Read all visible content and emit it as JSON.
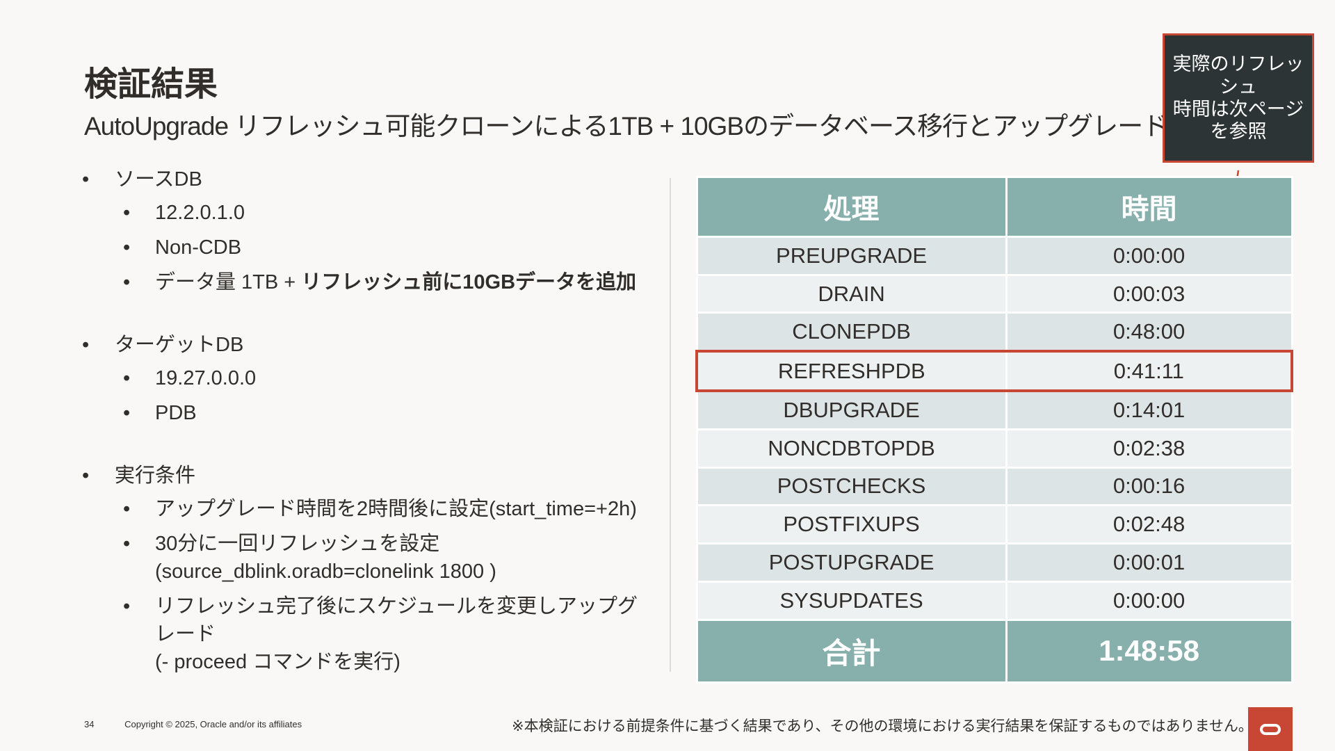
{
  "header": {
    "title": "検証結果",
    "subtitle": "AutoUpgrade リフレッシュ可能クローンによる1TB + 10GBのデータベース移行とアップグレード"
  },
  "callout": {
    "text": "実際のリフレッシュ\n時間は次ページ\nを参照"
  },
  "left": {
    "source": {
      "label": "ソースDB",
      "items": [
        "12.2.0.1.0",
        "Non-CDB"
      ],
      "data_prefix": "データ量 1TB + ",
      "data_bold": "リフレッシュ前に10GBデータを追加"
    },
    "target": {
      "label": "ターゲットDB",
      "items": [
        "19.27.0.0.0",
        "PDB"
      ]
    },
    "conditions": {
      "label": "実行条件",
      "item1": "アップグレード時間を2時間後に設定(start_time=+2h)",
      "item2_line1": "30分に一回リフレッシュを設定",
      "item2_line2": "(source_dblink.oradb=clonelink 1800 )",
      "item3_line1": "リフレッシュ完了後にスケジュールを変更しアップグレード",
      "item3_line2": "(- proceed コマンドを実行)"
    }
  },
  "table": {
    "headers": [
      "処理",
      "時間"
    ],
    "rows": [
      [
        "PREUPGRADE",
        "0:00:00"
      ],
      [
        "DRAIN",
        "0:00:03"
      ],
      [
        "CLONEPDB",
        "0:48:00"
      ],
      [
        "REFRESHPDB",
        "0:41:11"
      ],
      [
        "DBUPGRADE",
        "0:14:01"
      ],
      [
        "NONCDBTOPDB",
        "0:02:38"
      ],
      [
        "POSTCHECKS",
        "0:00:16"
      ],
      [
        "POSTFIXUPS",
        "0:02:48"
      ],
      [
        "POSTUPGRADE",
        "0:00:01"
      ],
      [
        "SYSUPDATES",
        "0:00:00"
      ]
    ],
    "total": [
      "合計",
      "1:48:58"
    ]
  },
  "footer": {
    "page": "34",
    "copyright": "Copyright © 2025, Oracle and/or its affiliates",
    "disclaimer": "※本検証における前提条件に基づく結果であり、その他の環境における実行結果を保証するものではありません。"
  },
  "colors": {
    "accent_red": "#c74634",
    "header_teal": "#87afac",
    "row_dark": "#dde4e5",
    "row_light": "#eef1f1",
    "callout_bg": "#2c3436"
  }
}
